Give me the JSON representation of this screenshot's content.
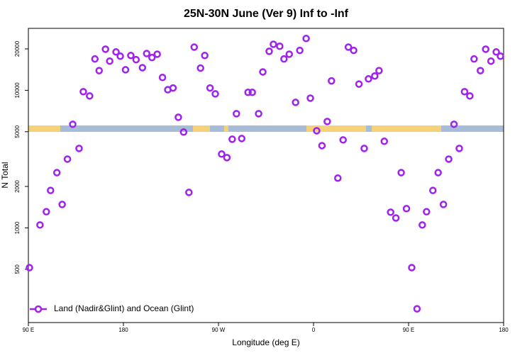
{
  "chart_data": {
    "type": "scatter",
    "title": "25N-30N June (Ver 9)   Inf to -Inf",
    "x_label": "Longitude (deg E)",
    "y_label": "N Total",
    "y_log": true,
    "legend": "lower left",
    "xlim": [
      90,
      540
    ],
    "ylim": [
      205,
      28200
    ],
    "xticks": [
      {
        "value": 90,
        "label": "90 E"
      },
      {
        "value": 180,
        "label": "180"
      },
      {
        "value": 270,
        "label": "90 W"
      },
      {
        "value": 360,
        "label": "0"
      },
      {
        "value": 450,
        "label": "90 E"
      },
      {
        "value": 540,
        "label": "180"
      }
    ],
    "yticks": [
      500,
      1000,
      2000,
      5000,
      10000,
      20000
    ],
    "series": [
      {
        "name": "Land (Nadir&Glint) and Ocean (Glint)",
        "color": "#a020f0",
        "x": [
          91,
          101,
          107,
          111,
          117,
          122,
          127,
          132,
          138,
          142,
          148,
          153,
          157,
          163,
          167,
          173,
          177,
          182,
          187,
          192,
          198,
          202,
          207,
          212,
          217,
          222,
          227,
          232,
          237,
          242,
          247,
          253,
          257,
          262,
          267,
          273,
          278,
          283,
          287,
          292,
          298,
          302,
          308,
          312,
          318,
          322,
          328,
          332,
          337,
          343,
          347,
          353,
          357,
          363,
          368,
          373,
          377,
          383,
          388,
          393,
          398,
          403,
          408,
          412,
          418,
          422,
          427,
          433,
          438,
          443,
          448,
          453,
          458,
          463,
          467,
          473,
          478,
          483,
          488,
          493,
          498,
          503,
          508,
          512,
          518,
          523,
          528,
          533,
          537
        ],
        "values": [
          514,
          1050,
          1310,
          1870,
          2520,
          1480,
          3160,
          5660,
          3780,
          9770,
          9100,
          16900,
          13900,
          19900,
          16300,
          19000,
          17700,
          14100,
          17900,
          16700,
          14600,
          18500,
          17300,
          18300,
          12400,
          10100,
          10400,
          6370,
          4970,
          1810,
          20600,
          14500,
          17900,
          10400,
          9420,
          3440,
          3240,
          4410,
          6760,
          4460,
          9660,
          9660,
          6760,
          13600,
          19200,
          21600,
          20900,
          16900,
          18300,
          8170,
          19500,
          23800,
          8770,
          5080,
          3960,
          5930,
          11700,
          2300,
          4360,
          20600,
          19500,
          11100,
          3780,
          12100,
          12700,
          13900,
          4260,
          1300,
          1180,
          2520,
          1380,
          514,
          258,
          1050,
          1310,
          1870,
          2520,
          1480,
          3160,
          5660,
          3780,
          9770,
          9100,
          16900,
          13900,
          19900,
          16300,
          19000,
          17700
        ]
      }
    ]
  }
}
